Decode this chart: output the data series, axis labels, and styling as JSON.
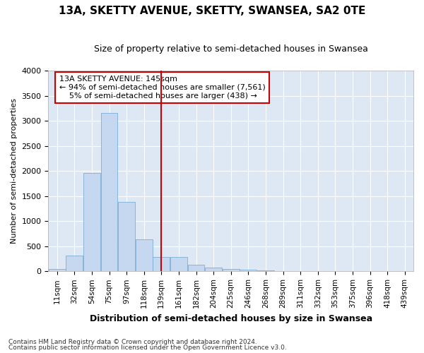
{
  "title": "13A, SKETTY AVENUE, SKETTY, SWANSEA, SA2 0TE",
  "subtitle": "Size of property relative to semi-detached houses in Swansea",
  "xlabel": "Distribution of semi-detached houses by size in Swansea",
  "ylabel": "Number of semi-detached properties",
  "footer_line1": "Contains HM Land Registry data © Crown copyright and database right 2024.",
  "footer_line2": "Contains public sector information licensed under the Open Government Licence v3.0.",
  "annotation_title": "13A SKETTY AVENUE: 145sqm",
  "annotation_line1": "← 94% of semi-detached houses are smaller (7,561)",
  "annotation_line2": "5% of semi-detached houses are larger (438) →",
  "bin_labels": [
    "11sqm",
    "32sqm",
    "54sqm",
    "75sqm",
    "97sqm",
    "118sqm",
    "139sqm",
    "161sqm",
    "182sqm",
    "204sqm",
    "225sqm",
    "246sqm",
    "268sqm",
    "289sqm",
    "311sqm",
    "332sqm",
    "353sqm",
    "375sqm",
    "396sqm",
    "418sqm",
    "439sqm"
  ],
  "counts": [
    50,
    310,
    1960,
    3160,
    1390,
    640,
    290,
    290,
    130,
    75,
    50,
    30,
    15,
    0,
    0,
    0,
    0,
    0,
    0,
    0,
    0
  ],
  "bar_color": "#c5d8ef",
  "bar_edge_color": "#7aadd4",
  "highlight_line_color": "#cc0000",
  "highlight_bin_index": 6,
  "annotation_box_color": "#ffffff",
  "annotation_box_edge": "#cc0000",
  "plot_bg_color": "#dde8f4",
  "ylim": [
    0,
    4000
  ],
  "yticks": [
    0,
    500,
    1000,
    1500,
    2000,
    2500,
    3000,
    3500,
    4000
  ],
  "title_fontsize": 11,
  "subtitle_fontsize": 9,
  "ylabel_fontsize": 8,
  "xlabel_fontsize": 9,
  "tick_fontsize": 8,
  "xtick_fontsize": 7.5,
  "footer_fontsize": 6.5,
  "annotation_fontsize": 8
}
